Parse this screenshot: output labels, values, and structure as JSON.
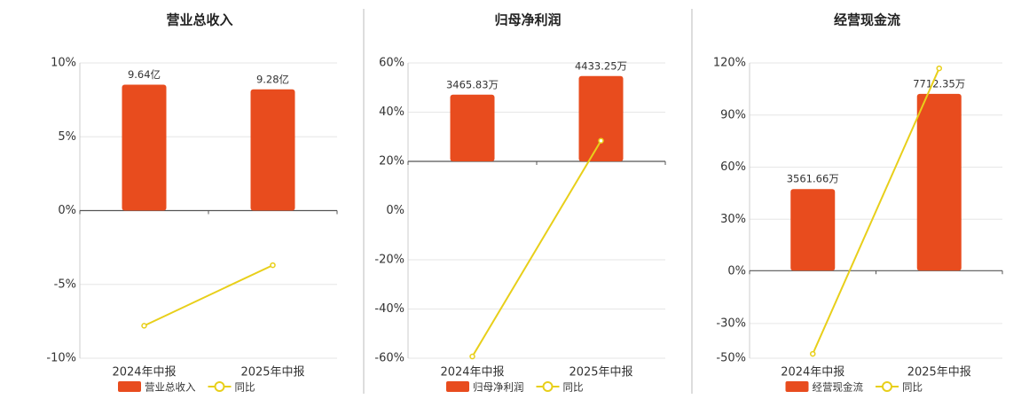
{
  "chart_data": [
    {
      "type": "bar",
      "title": "营业总收入",
      "categories": [
        "2024年中报",
        "2025年中报"
      ],
      "series": [
        {
          "name": "营业总收入",
          "type": "bar",
          "color": "#e84c1e",
          "axis": "y2",
          "values": [
            9.64,
            9.28
          ],
          "value_labels": [
            "9.64亿",
            "9.28亿"
          ]
        },
        {
          "name": "同比",
          "type": "line",
          "color": "#e8cf1a",
          "values": [
            -7.8,
            -3.7
          ]
        }
      ],
      "ylim": [
        -10,
        10
      ],
      "yticks": [
        {
          "value": -10,
          "label": "-10%"
        },
        {
          "value": -5,
          "label": "-5%"
        },
        {
          "value": 0,
          "label": "0%"
        },
        {
          "value": 5,
          "label": "5%"
        },
        {
          "value": 10,
          "label": "10%"
        }
      ],
      "y2lim": [
        -11.3,
        11.3
      ],
      "grid": true
    },
    {
      "type": "bar",
      "title": "归母净利润",
      "categories": [
        "2024年中报",
        "2025年中报"
      ],
      "series": [
        {
          "name": "归母净利润",
          "type": "bar",
          "color": "#e84c1e",
          "axis": "y2",
          "values": [
            3465.83,
            4433.25
          ],
          "value_labels": [
            "3465.83万",
            "4433.25万"
          ]
        },
        {
          "name": "同比",
          "type": "line",
          "color": "#e8cf1a",
          "values": [
            -59.3,
            28.4
          ]
        }
      ],
      "ylim": [
        -60,
        60
      ],
      "yticks": [
        {
          "value": -60,
          "label": "-60%"
        },
        {
          "value": -40,
          "label": "-40%"
        },
        {
          "value": -20,
          "label": "-20%"
        },
        {
          "value": 0,
          "label": "0%"
        },
        {
          "value": 20,
          "label": "20%"
        },
        {
          "value": 40,
          "label": "40%"
        },
        {
          "value": 60,
          "label": "60%"
        }
      ],
      "y2lim": [
        -10230,
        5115
      ],
      "grid": true
    },
    {
      "type": "bar",
      "title": "经营现金流",
      "categories": [
        "2024年中报",
        "2025年中报"
      ],
      "series": [
        {
          "name": "经营现金流",
          "type": "bar",
          "color": "#e84c1e",
          "axis": "y2",
          "values": [
            3561.66,
            7712.35
          ],
          "value_labels": [
            "3561.66万",
            "7712.35万"
          ]
        },
        {
          "name": "同比",
          "type": "line",
          "color": "#e8cf1a",
          "values": [
            -47.5,
            116.9
          ]
        }
      ],
      "ylim": [
        -50,
        120
      ],
      "yticks": [
        {
          "value": -50,
          "label": "-50%"
        },
        {
          "value": -30,
          "label": "-30%"
        },
        {
          "value": 0,
          "label": "0%"
        },
        {
          "value": 30,
          "label": "30%"
        },
        {
          "value": 60,
          "label": "60%"
        },
        {
          "value": 90,
          "label": "90%"
        },
        {
          "value": 120,
          "label": "120%"
        }
      ],
      "y2lim": [
        -3817,
        9062
      ],
      "grid": true
    }
  ]
}
